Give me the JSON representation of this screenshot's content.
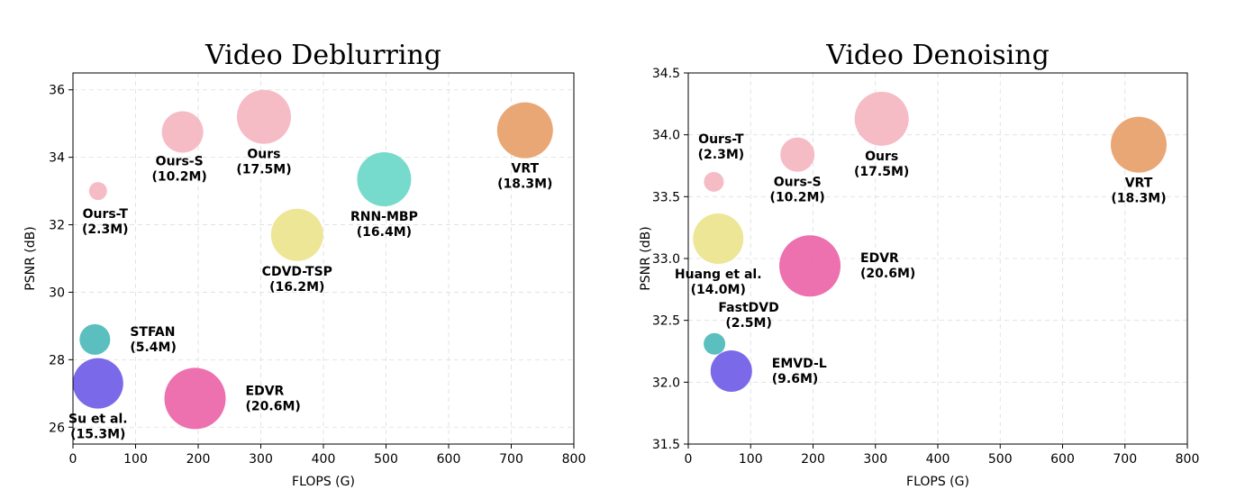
{
  "chart_data": [
    {
      "type": "scatter",
      "title": "Video Deblurring",
      "xlabel": "FLOPS (G)",
      "ylabel": "PSNR (dB)",
      "xlim": [
        0,
        800
      ],
      "ylim": [
        25.5,
        36.5
      ],
      "xticks": [
        0,
        100,
        200,
        300,
        400,
        500,
        600,
        700,
        800
      ],
      "yticks": [
        26,
        28,
        30,
        32,
        34,
        36
      ],
      "grid": true,
      "points": [
        {
          "name": "Ours-T",
          "params": "(2.3M)",
          "x": 40,
          "y": 33.0,
          "color": "#f4b6c0",
          "r": 10,
          "label_pos": "below-left"
        },
        {
          "name": "Ours-S",
          "params": "(10.2M)",
          "x": 175,
          "y": 34.75,
          "color": "#f4b6c0",
          "r": 23,
          "label_pos": "below-left"
        },
        {
          "name": "Ours",
          "params": "(17.5M)",
          "x": 305,
          "y": 35.2,
          "color": "#f4b6c0",
          "r": 30,
          "label_pos": "below"
        },
        {
          "name": "VRT",
          "params": "(18.3M)",
          "x": 722,
          "y": 34.8,
          "color": "#e8a06a",
          "r": 31,
          "label_pos": "below"
        },
        {
          "name": "RNN-MBP",
          "params": "(16.4M)",
          "x": 497,
          "y": 33.35,
          "color": "#6ad8c8",
          "r": 30,
          "label_pos": "below"
        },
        {
          "name": "CDVD-TSP",
          "params": "(16.2M)",
          "x": 358,
          "y": 31.7,
          "color": "#ece48e",
          "r": 29,
          "label_pos": "below"
        },
        {
          "name": "STFAN",
          "params": "(5.4M)",
          "x": 35,
          "y": 28.6,
          "color": "#4cbab8",
          "r": 17,
          "label_pos": "right"
        },
        {
          "name": "Su et al.",
          "params": "(15.3M)",
          "x": 40,
          "y": 27.3,
          "color": "#6f5ce6",
          "r": 28,
          "label_pos": "below"
        },
        {
          "name": "EDVR",
          "params": "(20.6M)",
          "x": 195,
          "y": 26.85,
          "color": "#ec64a8",
          "r": 34,
          "label_pos": "right"
        }
      ]
    },
    {
      "type": "scatter",
      "title": "Video Denoising",
      "xlabel": "FLOPS (G)",
      "ylabel": "PSNR (dB)",
      "xlim": [
        0,
        800
      ],
      "ylim": [
        31.5,
        34.5
      ],
      "xticks": [
        0,
        100,
        200,
        300,
        400,
        500,
        600,
        700,
        800
      ],
      "yticks": [
        31.5,
        32.0,
        32.5,
        33.0,
        33.5,
        34.0,
        34.5
      ],
      "grid": true,
      "points": [
        {
          "name": "Ours-T",
          "params": "(2.3M)",
          "x": 41,
          "y": 33.62,
          "color": "#f4b6c0",
          "r": 11,
          "label_pos": "above"
        },
        {
          "name": "Ours-S",
          "params": "(10.2M)",
          "x": 175,
          "y": 33.84,
          "color": "#f4b6c0",
          "r": 19,
          "label_pos": "below"
        },
        {
          "name": "Ours",
          "params": "(17.5M)",
          "x": 310,
          "y": 34.13,
          "color": "#f4b6c0",
          "r": 30,
          "label_pos": "below"
        },
        {
          "name": "VRT",
          "params": "(18.3M)",
          "x": 722,
          "y": 33.92,
          "color": "#e8a06a",
          "r": 31,
          "label_pos": "below"
        },
        {
          "name": "Huang et al.",
          "params": "(14.0M)",
          "x": 48,
          "y": 33.16,
          "color": "#ece48e",
          "r": 28,
          "label_pos": "below"
        },
        {
          "name": "EDVR",
          "params": "(20.6M)",
          "x": 195,
          "y": 32.94,
          "color": "#ec64a8",
          "r": 34,
          "label_pos": "right"
        },
        {
          "name": "FastDVD",
          "params": "(2.5M)",
          "x": 42,
          "y": 32.31,
          "color": "#4cbab8",
          "r": 12,
          "label_pos": "above-right"
        },
        {
          "name": "EMVD-L",
          "params": "(9.6M)",
          "x": 69,
          "y": 32.09,
          "color": "#6f5ce6",
          "r": 23,
          "label_pos": "right"
        }
      ]
    }
  ]
}
